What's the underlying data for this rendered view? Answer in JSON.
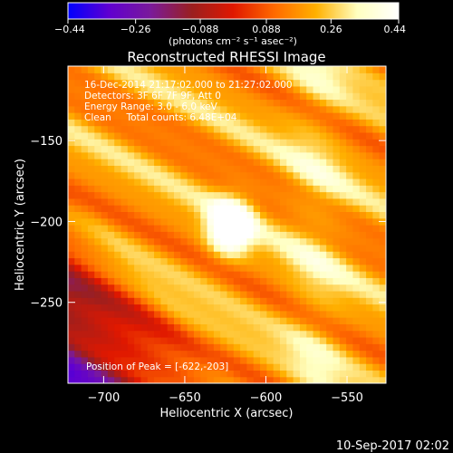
{
  "chart_data": {
    "type": "heatmap",
    "title": "Reconstructed RHESSI Image",
    "xlabel": "Heliocentric X (arcsec)",
    "ylabel": "Heliocentric Y (arcsec)",
    "xlim": [
      -722,
      -526
    ],
    "ylim": [
      -300,
      -104
    ],
    "xticks": [
      -700,
      -650,
      -600,
      -550
    ],
    "yticks": [
      -150,
      -200,
      -250
    ],
    "colorbar": {
      "min": -0.44,
      "max": 0.44,
      "ticks": [
        -0.44,
        -0.26,
        -0.088,
        0.088,
        0.26,
        0.44
      ],
      "tick_labels": [
        "-0.44",
        "-0.26",
        "-0.088",
        "0.088",
        "0.26",
        "0.44"
      ],
      "unit_label": "(photons cm⁻² s⁻¹ asec⁻²)",
      "colormap": [
        "#0000ff",
        "#6000d0",
        "#7a1a9a",
        "#9a1f1f",
        "#e01800",
        "#ff6a00",
        "#ffb000",
        "#ffffc0",
        "#ffffff"
      ]
    },
    "annotations": [
      "16-Dec-2014 21:17:02.000 to 21:27:02.000",
      "Detectors: 3F 6F 7F 9F, Att 0",
      "Energy Range: 3.0 - 6.0 keV",
      "Clean     Total counts: 6.48E+04"
    ],
    "peak": {
      "x": -622,
      "y": -203,
      "value": 0.44
    },
    "peak_label": "Position of Peak = [-622,-203]",
    "streak_angle_deg": 62,
    "grid_resolution": 48
  },
  "footer": {
    "timestamp": "10-Sep-2017 02:02"
  },
  "colors": {
    "background": "#000000",
    "axes": "#ffffff",
    "text": "#ffffff"
  }
}
